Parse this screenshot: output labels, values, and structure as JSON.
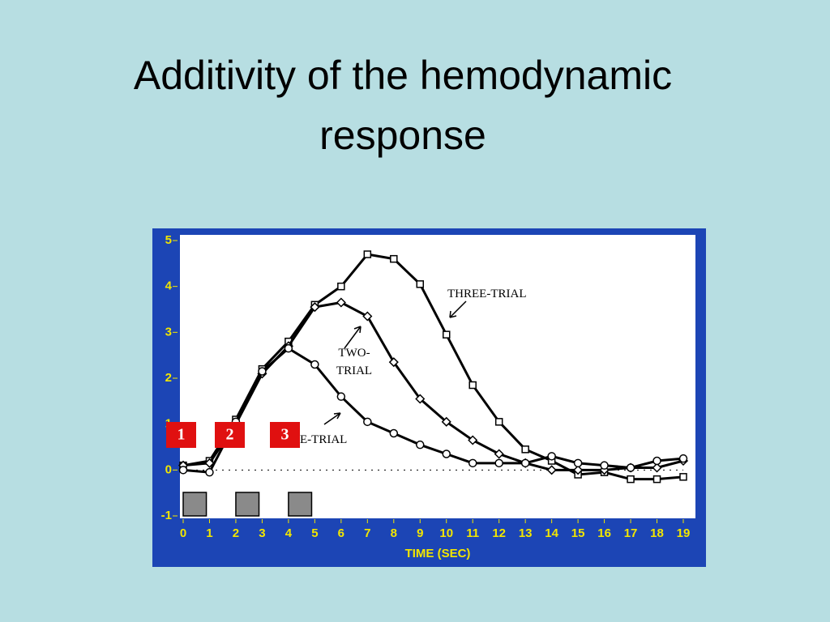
{
  "chart_data": {
    "type": "line",
    "title": "Additivity of the hemodynamic response",
    "xlabel": "TIME (SEC)",
    "x": [
      0,
      1,
      2,
      3,
      4,
      5,
      6,
      7,
      8,
      9,
      10,
      11,
      12,
      13,
      14,
      15,
      16,
      17,
      18,
      19
    ],
    "xlim": [
      0,
      19
    ],
    "xticks": [
      0,
      1,
      2,
      3,
      4,
      5,
      6,
      7,
      8,
      9,
      10,
      11,
      12,
      13,
      14,
      15,
      16,
      17,
      18,
      19
    ],
    "ylim": [
      -1,
      5
    ],
    "yticks": [
      -1,
      0,
      1,
      2,
      3,
      4,
      5
    ],
    "series": [
      {
        "name": "THREE-TRIAL",
        "marker": "square",
        "color": "#000000",
        "values": [
          0.1,
          0.2,
          1.1,
          2.2,
          2.8,
          3.6,
          4.0,
          4.7,
          4.6,
          4.05,
          2.95,
          1.85,
          1.05,
          0.45,
          0.2,
          -0.1,
          -0.05,
          -0.2,
          -0.2,
          -0.15
        ]
      },
      {
        "name": "TWO-TRIAL",
        "marker": "diamond",
        "color": "#000000",
        "values": [
          0.1,
          0.15,
          1.0,
          2.1,
          2.7,
          3.55,
          3.65,
          3.35,
          2.35,
          1.55,
          1.05,
          0.65,
          0.35,
          0.15,
          0.0,
          0.0,
          0.0,
          0.05,
          0.05,
          0.2
        ]
      },
      {
        "name": "E-TRIAL",
        "marker": "circle",
        "color": "#000000",
        "values": [
          0.0,
          -0.05,
          1.05,
          2.15,
          2.65,
          2.3,
          1.6,
          1.05,
          0.8,
          0.55,
          0.35,
          0.15,
          0.15,
          0.15,
          0.3,
          0.15,
          0.1,
          0.05,
          0.2,
          0.25
        ]
      }
    ],
    "stimulus_onsets": [
      0,
      2,
      4
    ],
    "stimulus_labels": [
      "1",
      "2",
      "3"
    ]
  }
}
